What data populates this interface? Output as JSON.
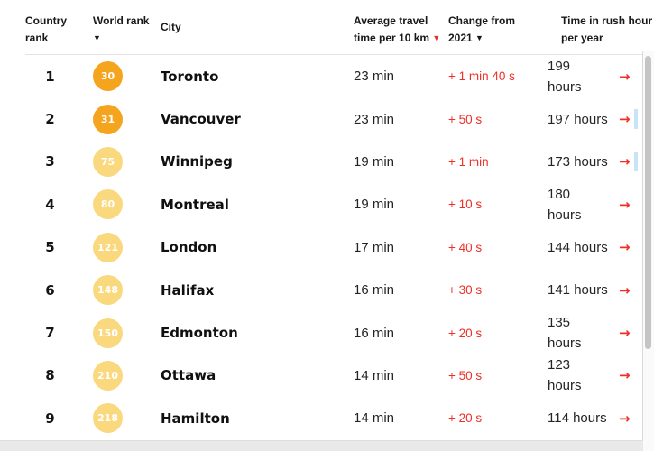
{
  "colors": {
    "badge_orange": "#f5a41e",
    "badge_yellow": "#fad87e",
    "accent_red": "#ee2f26",
    "header_text": "#181818",
    "body_text": "#242424"
  },
  "icons": {
    "arrow_right": "→",
    "sort_desc": "▼"
  },
  "table": {
    "headers": [
      {
        "id": "country_rank",
        "label": "Country\nrank"
      },
      {
        "id": "world_rank",
        "label": "World rank\n",
        "sort_icon": "▼",
        "sort_icon_color": "#181818"
      },
      {
        "id": "city",
        "label": "City"
      },
      {
        "id": "avg_travel_time",
        "label": "Average travel\ntime per 10 km ",
        "sort_icon": "▼",
        "sort_icon_color": "#ee2f26"
      },
      {
        "id": "change_from_2021",
        "label": "Change from\n2021 ",
        "sort_icon": "▼",
        "sort_icon_color": "#181818"
      },
      {
        "id": "time_rush_hour",
        "label": "Time in rush hour\nper year"
      }
    ],
    "rows": [
      {
        "country_rank": "1",
        "world_rank": "30",
        "badge_color": "#f5a41e",
        "city": "Toronto",
        "avg_travel_time": "23 min",
        "change_from_2021": "+ 1 min 40 s",
        "time_rush_hour": "199\nhours",
        "selection_mark": false
      },
      {
        "country_rank": "2",
        "world_rank": "31",
        "badge_color": "#f5a41e",
        "city": "Vancouver",
        "avg_travel_time": "23 min",
        "change_from_2021": "+ 50 s",
        "time_rush_hour": "197 hours",
        "selection_mark": true
      },
      {
        "country_rank": "3",
        "world_rank": "75",
        "badge_color": "#fad87e",
        "city": "Winnipeg",
        "avg_travel_time": "19 min",
        "change_from_2021": "+ 1 min",
        "time_rush_hour": "173 hours",
        "selection_mark": true
      },
      {
        "country_rank": "4",
        "world_rank": "80",
        "badge_color": "#fad87e",
        "city": "Montreal",
        "avg_travel_time": "19 min",
        "change_from_2021": "+ 10 s",
        "time_rush_hour": "180\nhours",
        "selection_mark": false
      },
      {
        "country_rank": "5",
        "world_rank": "121",
        "badge_color": "#fad87e",
        "city": "London",
        "avg_travel_time": "17 min",
        "change_from_2021": "+ 40 s",
        "time_rush_hour": "144 hours",
        "selection_mark": false
      },
      {
        "country_rank": "6",
        "world_rank": "148",
        "badge_color": "#fad87e",
        "city": "Halifax",
        "avg_travel_time": "16 min",
        "change_from_2021": "+ 30 s",
        "time_rush_hour": "141 hours",
        "selection_mark": false
      },
      {
        "country_rank": "7",
        "world_rank": "150",
        "badge_color": "#fad87e",
        "city": "Edmonton",
        "avg_travel_time": "16 min",
        "change_from_2021": "+ 20 s",
        "time_rush_hour": "135\nhours",
        "selection_mark": false
      },
      {
        "country_rank": "8",
        "world_rank": "210",
        "badge_color": "#fad87e",
        "city": "Ottawa",
        "avg_travel_time": "14 min",
        "change_from_2021": "+ 50 s",
        "time_rush_hour": "123\nhours",
        "selection_mark": false
      },
      {
        "country_rank": "9",
        "world_rank": "218",
        "badge_color": "#fad87e",
        "city": "Hamilton",
        "avg_travel_time": "14 min",
        "change_from_2021": "+ 20 s",
        "time_rush_hour": "114 hours",
        "selection_mark": false
      }
    ]
  }
}
